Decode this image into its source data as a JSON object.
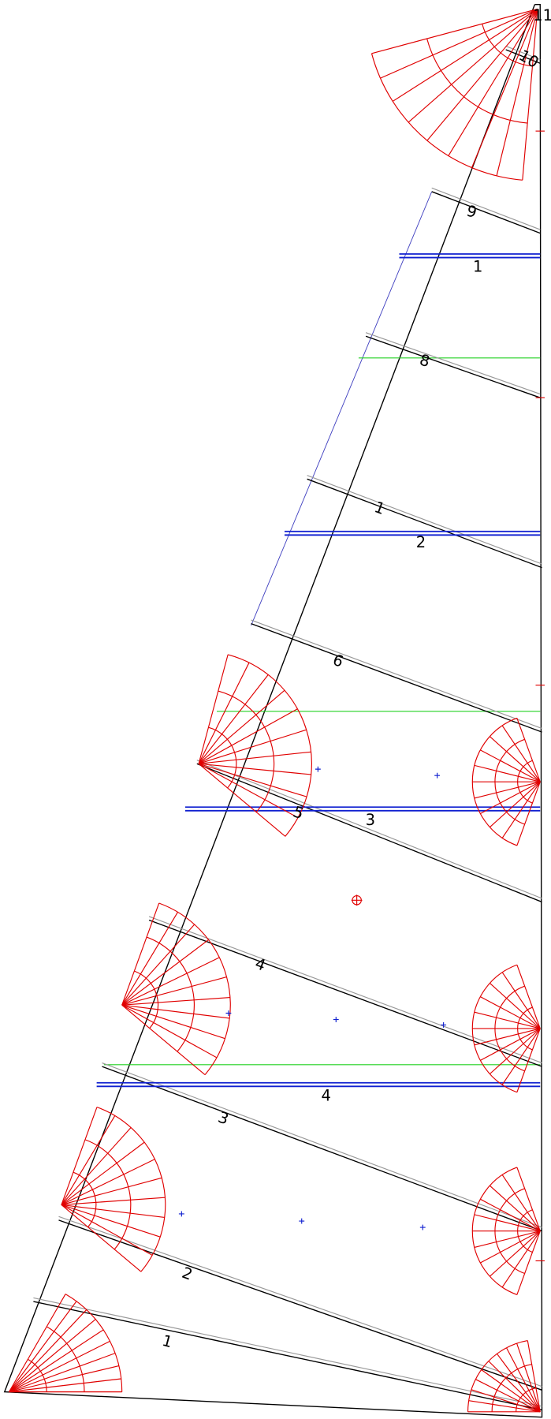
{
  "labels": [
    "11",
    "10",
    "9",
    "1",
    "8",
    "1",
    "2",
    "6",
    "5",
    "3",
    "4",
    "4",
    "3",
    "2",
    "1"
  ]
}
